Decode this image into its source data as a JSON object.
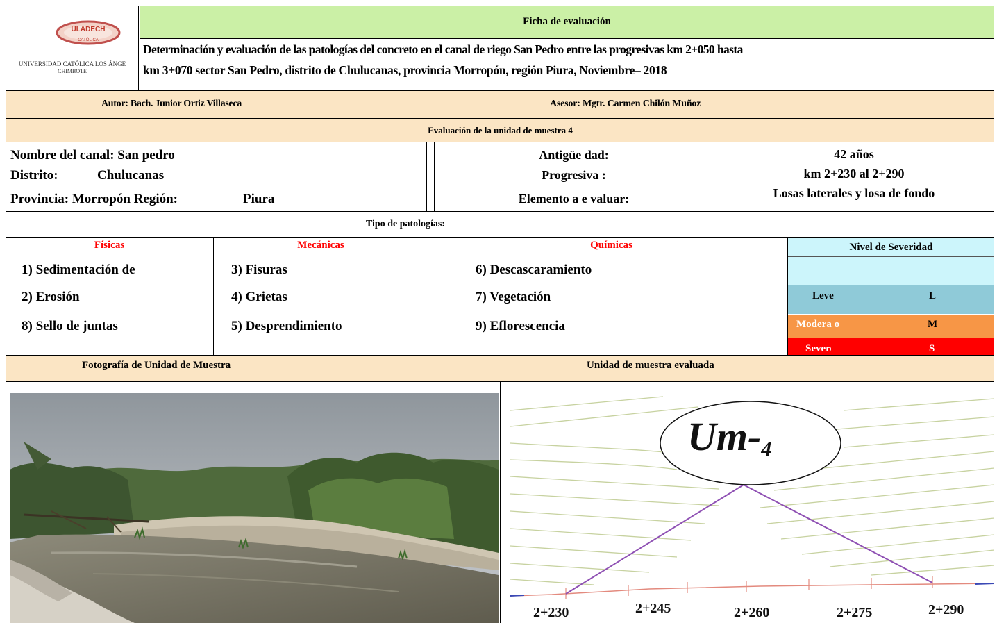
{
  "header": {
    "logo": {
      "name": "ULADECH",
      "subtitle": "CATÓLICA",
      "university": "UNIVERSIDAD CATÓLICA LOS ÁNGE",
      "city": "CHIMBOTE"
    },
    "title": "Ficha de evaluación",
    "subtitle_line1": "Determinación y evaluación de las patologías del concreto en el canal de riego San Pedro entre las progresivas km 2+050 hasta",
    "subtitle_line2": "km 3+070 sector San Pedro, distrito de Chulucanas, provincia Morropón, región Piura, Noviembre– 2018"
  },
  "authors": {
    "author": "Autor: Bach. Junior Ortiz Villaseca",
    "advisor": "Asesor: Mgtr. Carmen Chilón Muñoz"
  },
  "sample_title": "Evaluación de la unidad de muestra 4",
  "info": {
    "canal": "Nombre del canal: San pedro",
    "district_label": "Distrito:",
    "district_value": "Chulucanas",
    "province_label": "Provincia: Morropón Región:",
    "province_value": "Piura",
    "age_label": "Antigüe dad:",
    "progressive_label": "Progresiva :",
    "element_label": "Elemento a e valuar:",
    "age_value": "42 años",
    "progressive_value": "km 2+230 al 2+290",
    "element_value": "Losas laterales y losa de fondo"
  },
  "pathology_types_title": "Tipo de patologías:",
  "pathologies": {
    "fisicas": {
      "title": "Físicas",
      "items": [
        "1) Sedimentación de",
        "2) Erosión",
        "8) Sello de juntas"
      ]
    },
    "mecanicas": {
      "title": "Mecánicas",
      "items": [
        "3) Fisuras",
        "4) Grietas",
        "5) Desprendimiento"
      ]
    },
    "quimicas": {
      "title": "Químicas",
      "items": [
        "6) Descascaramiento",
        "7) Vegetación",
        "9) Eflorescencia"
      ]
    }
  },
  "severity": {
    "title": "Nivel de Severidad",
    "levels": [
      {
        "label": "Leve",
        "code": "L",
        "color": "#8fcad8"
      },
      {
        "label": "Modera o",
        "code": "M",
        "color": "#f79646"
      },
      {
        "label": "Severo",
        "code": "S",
        "color": "#ff0000"
      }
    ],
    "header_color": "#ccf5fb"
  },
  "photo_title": "Fotografía de Unidad de Muestra",
  "evaluated_title": "Unidad de muestra evaluada",
  "diagram": {
    "label_main": "Um-",
    "label_sub": "4",
    "stations": [
      "2+230",
      "2+245",
      "2+260",
      "2+275",
      "2+290"
    ]
  }
}
